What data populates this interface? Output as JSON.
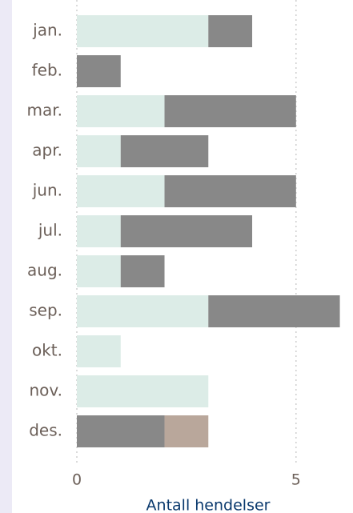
{
  "chart_data": {
    "type": "bar",
    "orientation": "horizontal",
    "stacked": true,
    "categories": [
      "jan.",
      "feb.",
      "mar.",
      "apr.",
      "jun.",
      "jul.",
      "aug.",
      "sep.",
      "okt.",
      "nov.",
      "des."
    ],
    "series": [
      {
        "color": "#dcece7",
        "values": [
          3,
          0,
          2,
          1,
          2,
          1,
          1,
          3,
          1,
          3,
          0
        ]
      },
      {
        "color": "#888888",
        "values": [
          1,
          1,
          3,
          2,
          3,
          3,
          1,
          3,
          0,
          0,
          2
        ]
      },
      {
        "color": "#b9a79b",
        "values": [
          0,
          0,
          0,
          0,
          0,
          0,
          0,
          0,
          0,
          0,
          1
        ]
      }
    ],
    "xlabel": "Antall hendelser",
    "xlim": [
      0,
      6.3
    ],
    "xticks": [
      0,
      5
    ],
    "grid": true
  }
}
